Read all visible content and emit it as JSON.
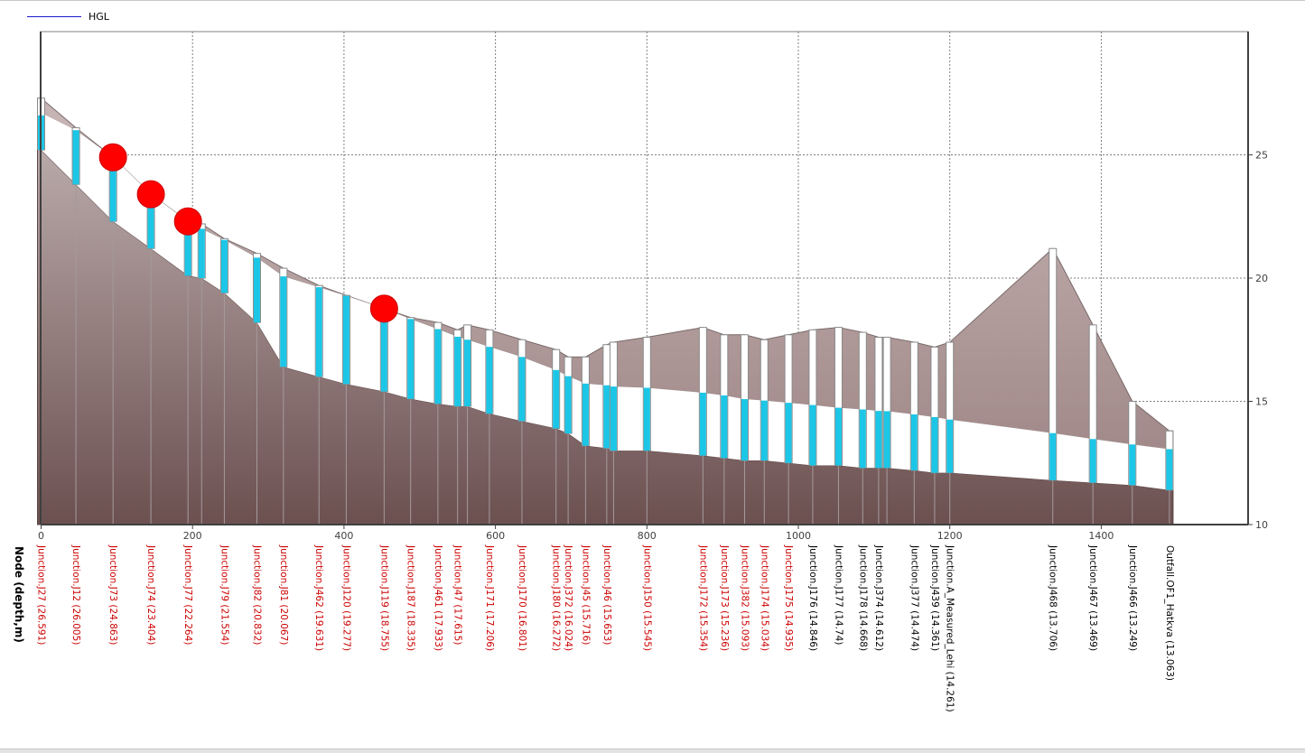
{
  "legend": {
    "hgl_label": "HGL"
  },
  "colors": {
    "ground": "#8e7474",
    "ground_dark": "#6d5252",
    "water": "#5fe6f5",
    "water_dark": "#1cc6e6",
    "hgl_line": "#1a1acc",
    "pipe_outline": "#8a8a8a",
    "flood": "#ff0000",
    "label_flooded": "#cc0000",
    "label_normal": "#000000",
    "grid": "#808080"
  },
  "chart_data": {
    "type": "profile",
    "title": "",
    "xlabel": "Node (depth,m)",
    "ylabel": "",
    "xlim": [
      0,
      1600
    ],
    "ylim": [
      10,
      30
    ],
    "x_ticks": [
      0,
      200,
      400,
      600,
      800,
      1000,
      1200,
      1400
    ],
    "x_tick_labels": [
      "0",
      "200",
      "400",
      "600",
      "800",
      "1000",
      "1200",
      "1400"
    ],
    "y_ticks": [
      10,
      15,
      20,
      25
    ],
    "y_tick_labels": [
      "10",
      "15",
      "20",
      "25"
    ],
    "grid": true,
    "legend_position": "top-left",
    "series": [
      {
        "name": "HGL"
      }
    ],
    "nodes": [
      {
        "label": "Junction.J27 (26.591)",
        "x": 0,
        "invert": 25.2,
        "hgl": 26.6,
        "top": 27.3,
        "flood": false,
        "red": true
      },
      {
        "label": "Junction.J12 (26.005)",
        "x": 46,
        "invert": 23.8,
        "hgl": 26.0,
        "top": 26.1,
        "flood": false,
        "red": true
      },
      {
        "label": "Junction.J73 (24.863)",
        "x": 95,
        "invert": 22.3,
        "hgl": 24.9,
        "top": 24.9,
        "flood": true,
        "red": true
      },
      {
        "label": "Junction.J74 (23.404)",
        "x": 145,
        "invert": 21.2,
        "hgl": 23.4,
        "top": 23.4,
        "flood": true,
        "red": true
      },
      {
        "label": "Junction.J77 (22.264)",
        "x": 194,
        "invert": 20.1,
        "hgl": 22.3,
        "top": 22.3,
        "flood": true,
        "red": true
      },
      {
        "label": "",
        "x": 212,
        "invert": 20.0,
        "hgl": 22.0,
        "top": 22.2,
        "flood": false,
        "red": true
      },
      {
        "label": "Junction.J79 (21.554)",
        "x": 242,
        "invert": 19.4,
        "hgl": 21.55,
        "top": 21.6,
        "flood": false,
        "red": true
      },
      {
        "label": "Junction.J82 (20.832)",
        "x": 285,
        "invert": 18.2,
        "hgl": 20.83,
        "top": 21.0,
        "flood": false,
        "red": true
      },
      {
        "label": "Junction.J81 (20.067)",
        "x": 320,
        "invert": 16.4,
        "hgl": 20.07,
        "top": 20.4,
        "flood": false,
        "red": true
      },
      {
        "label": "Junction.J462 (19.631)",
        "x": 367,
        "invert": 16.0,
        "hgl": 19.63,
        "top": 19.7,
        "flood": false,
        "red": true
      },
      {
        "label": "Junction.J120 (19.277)",
        "x": 403,
        "invert": 15.7,
        "hgl": 19.28,
        "top": 19.3,
        "flood": false,
        "red": true
      },
      {
        "label": "Junction.J119 (18.755)",
        "x": 453,
        "invert": 15.4,
        "hgl": 18.76,
        "top": 18.76,
        "flood": true,
        "red": true
      },
      {
        "label": "Junction.J187 (18.335)",
        "x": 488,
        "invert": 15.1,
        "hgl": 18.34,
        "top": 18.4,
        "flood": false,
        "red": true
      },
      {
        "label": "Junction.J461 (17.933)",
        "x": 524,
        "invert": 14.9,
        "hgl": 17.93,
        "top": 18.2,
        "flood": false,
        "red": true
      },
      {
        "label": "Junction.J47 (17.615)",
        "x": 550,
        "invert": 14.8,
        "hgl": 17.62,
        "top": 17.9,
        "flood": false,
        "red": true
      },
      {
        "label": "",
        "x": 563,
        "invert": 14.8,
        "hgl": 17.5,
        "top": 18.1,
        "flood": false,
        "red": true
      },
      {
        "label": "Junction.J171 (17.206)",
        "x": 592,
        "invert": 14.5,
        "hgl": 17.21,
        "top": 17.9,
        "flood": false,
        "red": true
      },
      {
        "label": "Junction.J170 (16.801)",
        "x": 635,
        "invert": 14.2,
        "hgl": 16.8,
        "top": 17.5,
        "flood": false,
        "red": true
      },
      {
        "label": "Junction.J180 (16.272)",
        "x": 680,
        "invert": 13.9,
        "hgl": 16.27,
        "top": 17.1,
        "flood": false,
        "red": true
      },
      {
        "label": "Junction.J372 (16.024)",
        "x": 696,
        "invert": 13.7,
        "hgl": 16.02,
        "top": 16.8,
        "flood": false,
        "red": true
      },
      {
        "label": "Junction.J45 (15.716)",
        "x": 719,
        "invert": 13.2,
        "hgl": 15.72,
        "top": 16.8,
        "flood": false,
        "red": true
      },
      {
        "label": "Junction.J46 (15.653)",
        "x": 747,
        "invert": 13.1,
        "hgl": 15.65,
        "top": 17.3,
        "flood": false,
        "red": true
      },
      {
        "label": "",
        "x": 756,
        "invert": 13.0,
        "hgl": 15.6,
        "top": 17.4,
        "flood": false,
        "red": true
      },
      {
        "label": "Junction.J150 (15.545)",
        "x": 800,
        "invert": 13.0,
        "hgl": 15.55,
        "top": 17.6,
        "flood": false,
        "red": true
      },
      {
        "label": "Junction.J172 (15.354)",
        "x": 874,
        "invert": 12.8,
        "hgl": 15.35,
        "top": 18.0,
        "flood": false,
        "red": true
      },
      {
        "label": "Junction.J173 (15.236)",
        "x": 902,
        "invert": 12.7,
        "hgl": 15.24,
        "top": 17.7,
        "flood": false,
        "red": true
      },
      {
        "label": "Junction.J382 (15.093)",
        "x": 929,
        "invert": 12.6,
        "hgl": 15.09,
        "top": 17.7,
        "flood": false,
        "red": true
      },
      {
        "label": "Junction.J174 (15.034)",
        "x": 955,
        "invert": 12.6,
        "hgl": 15.03,
        "top": 17.5,
        "flood": false,
        "red": true
      },
      {
        "label": "Junction.J175 (14.935)",
        "x": 987,
        "invert": 12.5,
        "hgl": 14.94,
        "top": 17.7,
        "flood": false,
        "red": true
      },
      {
        "label": "Junction.J176 (14.846)",
        "x": 1019,
        "invert": 12.4,
        "hgl": 14.85,
        "top": 17.9,
        "flood": false,
        "red": false
      },
      {
        "label": "Junction.J177 (14.74)",
        "x": 1053,
        "invert": 12.4,
        "hgl": 14.74,
        "top": 18.0,
        "flood": false,
        "red": false
      },
      {
        "label": "Junction.J178 (14.668)",
        "x": 1085,
        "invert": 12.3,
        "hgl": 14.67,
        "top": 17.8,
        "flood": false,
        "red": false
      },
      {
        "label": "Junction.J374 (14.612)",
        "x": 1106,
        "invert": 12.3,
        "hgl": 14.61,
        "top": 17.6,
        "flood": false,
        "red": false
      },
      {
        "label": "",
        "x": 1117,
        "invert": 12.3,
        "hgl": 14.6,
        "top": 17.6,
        "flood": false,
        "red": false
      },
      {
        "label": "Junction.J377 (14.474)",
        "x": 1153,
        "invert": 12.2,
        "hgl": 14.47,
        "top": 17.4,
        "flood": false,
        "red": false
      },
      {
        "label": "Junction.J439 (14.361)",
        "x": 1180,
        "invert": 12.1,
        "hgl": 14.36,
        "top": 17.2,
        "flood": false,
        "red": false
      },
      {
        "label": "Junction.A_Measured_Lehi (14.261)",
        "x": 1200,
        "invert": 12.1,
        "hgl": 14.26,
        "top": 17.4,
        "flood": false,
        "red": false
      },
      {
        "label": "Junction.J468 (13.706)",
        "x": 1336,
        "invert": 11.8,
        "hgl": 13.71,
        "top": 21.2,
        "flood": false,
        "red": false
      },
      {
        "label": "Junction.J467 (13.469)",
        "x": 1389,
        "invert": 11.7,
        "hgl": 13.47,
        "top": 18.1,
        "flood": false,
        "red": false
      },
      {
        "label": "Junction.J466 (13.249)",
        "x": 1441,
        "invert": 11.6,
        "hgl": 13.25,
        "top": 15.0,
        "flood": false,
        "red": false
      },
      {
        "label": "Outfall.OF1_Hatkva (13.063)",
        "x": 1490,
        "invert": 11.4,
        "hgl": 13.06,
        "top": 13.8,
        "flood": false,
        "red": false
      }
    ]
  }
}
